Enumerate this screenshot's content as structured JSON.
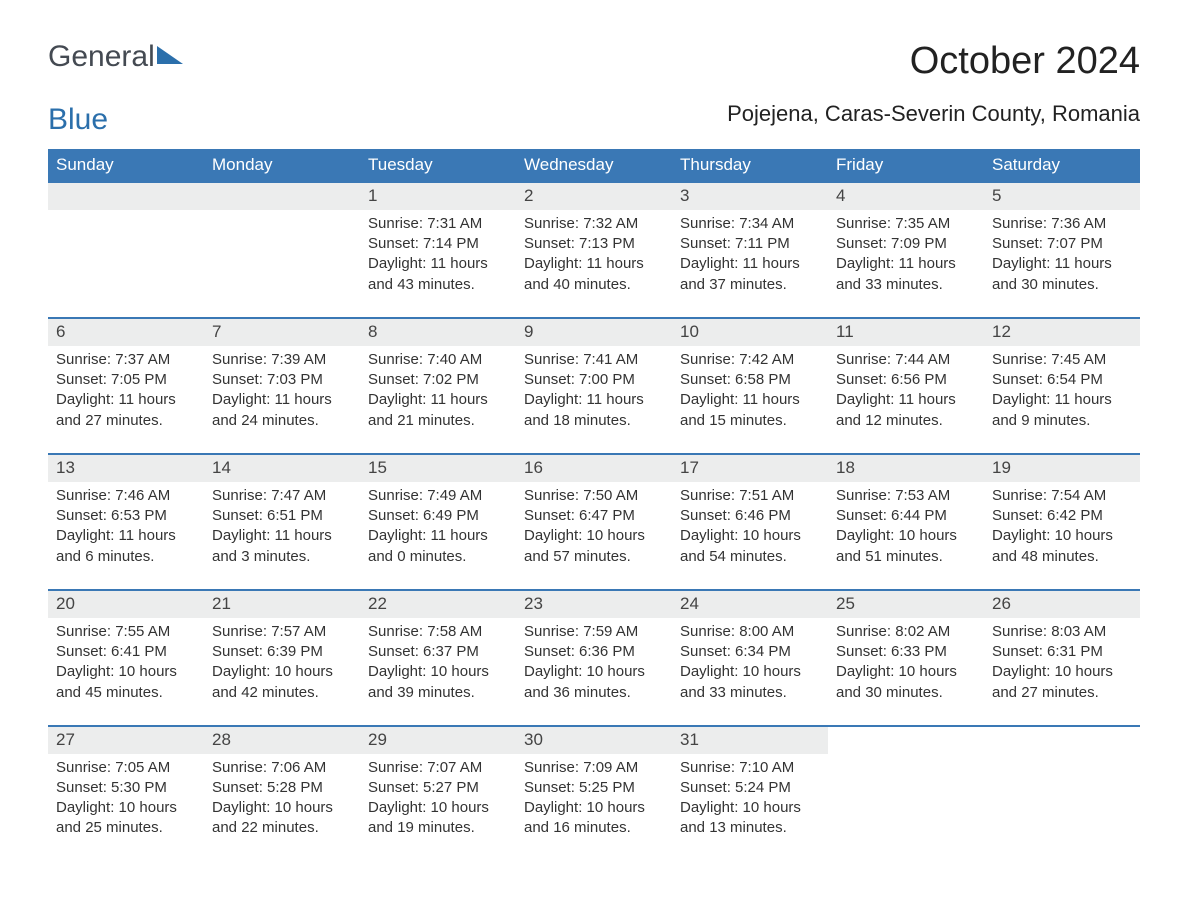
{
  "brand": {
    "part1": "General",
    "part2": "Blue"
  },
  "title": "October 2024",
  "location": "Pojejena, Caras-Severin County, Romania",
  "colors": {
    "header_bg": "#3a78b5",
    "header_text": "#ffffff",
    "daynum_bg": "#eceded",
    "row_border": "#3a78b5",
    "body_text": "#333333",
    "logo_gray": "#444a52",
    "logo_blue": "#2b6fab",
    "page_bg": "#ffffff"
  },
  "weekdays": [
    "Sunday",
    "Monday",
    "Tuesday",
    "Wednesday",
    "Thursday",
    "Friday",
    "Saturday"
  ],
  "weeks": [
    [
      null,
      null,
      {
        "n": "1",
        "sr": "Sunrise: 7:31 AM",
        "ss": "Sunset: 7:14 PM",
        "d1": "Daylight: 11 hours",
        "d2": "and 43 minutes."
      },
      {
        "n": "2",
        "sr": "Sunrise: 7:32 AM",
        "ss": "Sunset: 7:13 PM",
        "d1": "Daylight: 11 hours",
        "d2": "and 40 minutes."
      },
      {
        "n": "3",
        "sr": "Sunrise: 7:34 AM",
        "ss": "Sunset: 7:11 PM",
        "d1": "Daylight: 11 hours",
        "d2": "and 37 minutes."
      },
      {
        "n": "4",
        "sr": "Sunrise: 7:35 AM",
        "ss": "Sunset: 7:09 PM",
        "d1": "Daylight: 11 hours",
        "d2": "and 33 minutes."
      },
      {
        "n": "5",
        "sr": "Sunrise: 7:36 AM",
        "ss": "Sunset: 7:07 PM",
        "d1": "Daylight: 11 hours",
        "d2": "and 30 minutes."
      }
    ],
    [
      {
        "n": "6",
        "sr": "Sunrise: 7:37 AM",
        "ss": "Sunset: 7:05 PM",
        "d1": "Daylight: 11 hours",
        "d2": "and 27 minutes."
      },
      {
        "n": "7",
        "sr": "Sunrise: 7:39 AM",
        "ss": "Sunset: 7:03 PM",
        "d1": "Daylight: 11 hours",
        "d2": "and 24 minutes."
      },
      {
        "n": "8",
        "sr": "Sunrise: 7:40 AM",
        "ss": "Sunset: 7:02 PM",
        "d1": "Daylight: 11 hours",
        "d2": "and 21 minutes."
      },
      {
        "n": "9",
        "sr": "Sunrise: 7:41 AM",
        "ss": "Sunset: 7:00 PM",
        "d1": "Daylight: 11 hours",
        "d2": "and 18 minutes."
      },
      {
        "n": "10",
        "sr": "Sunrise: 7:42 AM",
        "ss": "Sunset: 6:58 PM",
        "d1": "Daylight: 11 hours",
        "d2": "and 15 minutes."
      },
      {
        "n": "11",
        "sr": "Sunrise: 7:44 AM",
        "ss": "Sunset: 6:56 PM",
        "d1": "Daylight: 11 hours",
        "d2": "and 12 minutes."
      },
      {
        "n": "12",
        "sr": "Sunrise: 7:45 AM",
        "ss": "Sunset: 6:54 PM",
        "d1": "Daylight: 11 hours",
        "d2": "and 9 minutes."
      }
    ],
    [
      {
        "n": "13",
        "sr": "Sunrise: 7:46 AM",
        "ss": "Sunset: 6:53 PM",
        "d1": "Daylight: 11 hours",
        "d2": "and 6 minutes."
      },
      {
        "n": "14",
        "sr": "Sunrise: 7:47 AM",
        "ss": "Sunset: 6:51 PM",
        "d1": "Daylight: 11 hours",
        "d2": "and 3 minutes."
      },
      {
        "n": "15",
        "sr": "Sunrise: 7:49 AM",
        "ss": "Sunset: 6:49 PM",
        "d1": "Daylight: 11 hours",
        "d2": "and 0 minutes."
      },
      {
        "n": "16",
        "sr": "Sunrise: 7:50 AM",
        "ss": "Sunset: 6:47 PM",
        "d1": "Daylight: 10 hours",
        "d2": "and 57 minutes."
      },
      {
        "n": "17",
        "sr": "Sunrise: 7:51 AM",
        "ss": "Sunset: 6:46 PM",
        "d1": "Daylight: 10 hours",
        "d2": "and 54 minutes."
      },
      {
        "n": "18",
        "sr": "Sunrise: 7:53 AM",
        "ss": "Sunset: 6:44 PM",
        "d1": "Daylight: 10 hours",
        "d2": "and 51 minutes."
      },
      {
        "n": "19",
        "sr": "Sunrise: 7:54 AM",
        "ss": "Sunset: 6:42 PM",
        "d1": "Daylight: 10 hours",
        "d2": "and 48 minutes."
      }
    ],
    [
      {
        "n": "20",
        "sr": "Sunrise: 7:55 AM",
        "ss": "Sunset: 6:41 PM",
        "d1": "Daylight: 10 hours",
        "d2": "and 45 minutes."
      },
      {
        "n": "21",
        "sr": "Sunrise: 7:57 AM",
        "ss": "Sunset: 6:39 PM",
        "d1": "Daylight: 10 hours",
        "d2": "and 42 minutes."
      },
      {
        "n": "22",
        "sr": "Sunrise: 7:58 AM",
        "ss": "Sunset: 6:37 PM",
        "d1": "Daylight: 10 hours",
        "d2": "and 39 minutes."
      },
      {
        "n": "23",
        "sr": "Sunrise: 7:59 AM",
        "ss": "Sunset: 6:36 PM",
        "d1": "Daylight: 10 hours",
        "d2": "and 36 minutes."
      },
      {
        "n": "24",
        "sr": "Sunrise: 8:00 AM",
        "ss": "Sunset: 6:34 PM",
        "d1": "Daylight: 10 hours",
        "d2": "and 33 minutes."
      },
      {
        "n": "25",
        "sr": "Sunrise: 8:02 AM",
        "ss": "Sunset: 6:33 PM",
        "d1": "Daylight: 10 hours",
        "d2": "and 30 minutes."
      },
      {
        "n": "26",
        "sr": "Sunrise: 8:03 AM",
        "ss": "Sunset: 6:31 PM",
        "d1": "Daylight: 10 hours",
        "d2": "and 27 minutes."
      }
    ],
    [
      {
        "n": "27",
        "sr": "Sunrise: 7:05 AM",
        "ss": "Sunset: 5:30 PM",
        "d1": "Daylight: 10 hours",
        "d2": "and 25 minutes."
      },
      {
        "n": "28",
        "sr": "Sunrise: 7:06 AM",
        "ss": "Sunset: 5:28 PM",
        "d1": "Daylight: 10 hours",
        "d2": "and 22 minutes."
      },
      {
        "n": "29",
        "sr": "Sunrise: 7:07 AM",
        "ss": "Sunset: 5:27 PM",
        "d1": "Daylight: 10 hours",
        "d2": "and 19 minutes."
      },
      {
        "n": "30",
        "sr": "Sunrise: 7:09 AM",
        "ss": "Sunset: 5:25 PM",
        "d1": "Daylight: 10 hours",
        "d2": "and 16 minutes."
      },
      {
        "n": "31",
        "sr": "Sunrise: 7:10 AM",
        "ss": "Sunset: 5:24 PM",
        "d1": "Daylight: 10 hours",
        "d2": "and 13 minutes."
      },
      null,
      null
    ]
  ]
}
